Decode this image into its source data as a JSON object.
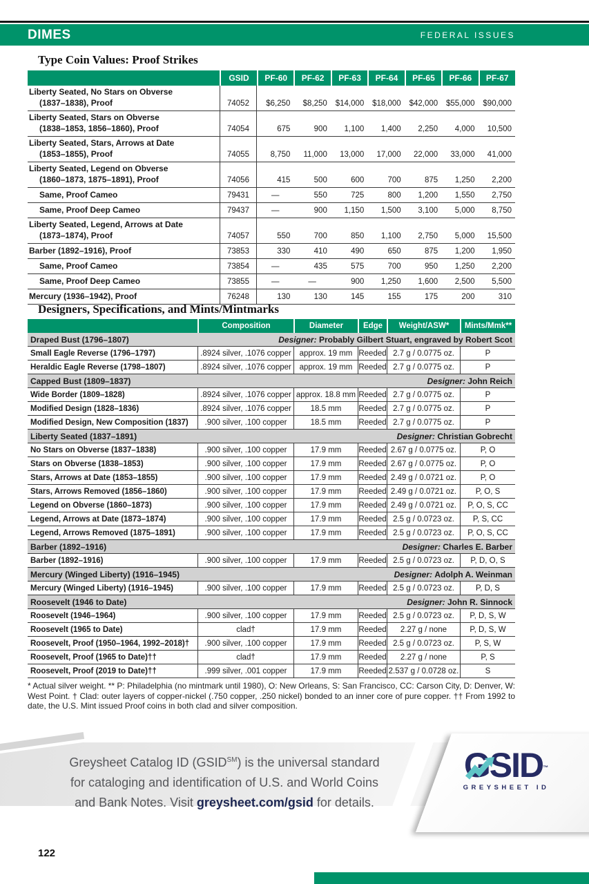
{
  "header": {
    "title": "DIMES",
    "right_label": "FEDERAL ISSUES"
  },
  "proof_table": {
    "title": "Type Coin Values: Proof Strikes",
    "col_headers": [
      "",
      "GSID",
      "PF-60",
      "PF-62",
      "PF-63",
      "PF-64",
      "PF-65",
      "PF-66",
      "PF-67"
    ],
    "rows": [
      {
        "name": "Liberty Seated, No Stars on Obverse",
        "name_line2": "(1837–1838), Proof",
        "gsid": "74052",
        "values": [
          "$6,250",
          "$8,250",
          "$14,000",
          "$18,000",
          "$42,000",
          "$55,000",
          "$90,000"
        ]
      },
      {
        "name": "Liberty Seated, Stars on Obverse",
        "name_line2": "(1838–1853, 1856–1860), Proof",
        "gsid": "74054",
        "values": [
          "675",
          "900",
          "1,100",
          "1,400",
          "2,250",
          "4,000",
          "10,500"
        ]
      },
      {
        "name": "Liberty Seated, Stars, Arrows at Date",
        "name_line2": "(1853–1855), Proof",
        "gsid": "74055",
        "values": [
          "8,750",
          "11,000",
          "13,000",
          "17,000",
          "22,000",
          "33,000",
          "41,000"
        ]
      },
      {
        "name": "Liberty Seated, Legend on Obverse",
        "name_line2": "(1860–1873, 1875–1891), Proof",
        "gsid": "74056",
        "values": [
          "415",
          "500",
          "600",
          "700",
          "875",
          "1,250",
          "2,200"
        ]
      },
      {
        "name": "Same, Proof Cameo",
        "indent": true,
        "gsid": "79431",
        "values": [
          "—",
          "550",
          "725",
          "800",
          "1,200",
          "1,550",
          "2,750"
        ]
      },
      {
        "name": "Same, Proof Deep Cameo",
        "indent": true,
        "gsid": "79437",
        "values": [
          "—",
          "900",
          "1,150",
          "1,500",
          "3,100",
          "5,000",
          "8,750"
        ]
      },
      {
        "name": "Liberty Seated, Legend, Arrows at Date",
        "name_line2": "(1873–1874), Proof",
        "gsid": "74057",
        "values": [
          "550",
          "700",
          "850",
          "1,100",
          "2,750",
          "5,000",
          "15,500"
        ]
      },
      {
        "name": "Barber (1892–1916), Proof",
        "gsid": "73853",
        "values": [
          "330",
          "410",
          "490",
          "650",
          "875",
          "1,200",
          "1,950"
        ]
      },
      {
        "name": "Same, Proof Cameo",
        "indent": true,
        "gsid": "73854",
        "values": [
          "—",
          "435",
          "575",
          "700",
          "950",
          "1,250",
          "2,200"
        ]
      },
      {
        "name": "Same, Proof Deep Cameo",
        "indent": true,
        "gsid": "73855",
        "values": [
          "—",
          "—",
          "900",
          "1,250",
          "1,600",
          "2,500",
          "5,500"
        ]
      },
      {
        "name": "Mercury (1936–1942), Proof",
        "gsid": "76248",
        "values": [
          "130",
          "130",
          "145",
          "155",
          "175",
          "200",
          "310"
        ]
      }
    ]
  },
  "specs_table": {
    "title": "Designers, Specifications, and Mints/Mintmarks",
    "col_headers": [
      "",
      "Composition",
      "Diameter",
      "Edge",
      "Weight/ASW*",
      "Mints/Mmk**"
    ],
    "rows": [
      {
        "type": "section",
        "name": "Draped Bust (1796–1807)",
        "designer_label": "Designer:",
        "designer": "Probably Gilbert Stuart, engraved by Robert Scot"
      },
      {
        "type": "data",
        "name": "Small Eagle Reverse (1796–1797)",
        "composition": ".8924 silver, .1076 copper",
        "diameter": "approx. 19 mm",
        "edge": "Reeded",
        "weight": "2.7 g / 0.0775 oz.",
        "mints": "P"
      },
      {
        "type": "data",
        "name": "Heraldic Eagle Reverse (1798–1807)",
        "composition": ".8924 silver, .1076 copper",
        "diameter": "approx. 19 mm",
        "edge": "Reeded",
        "weight": "2.7 g / 0.0775 oz.",
        "mints": "P"
      },
      {
        "type": "section",
        "name": "Capped Bust (1809–1837)",
        "designer_label": "Designer:",
        "designer": "John Reich"
      },
      {
        "type": "data",
        "name": "Wide Border (1809–1828)",
        "composition": ".8924 silver, .1076 copper",
        "diameter": "approx. 18.8 mm",
        "edge": "Reeded",
        "weight": "2.7 g / 0.0775 oz.",
        "mints": "P"
      },
      {
        "type": "data",
        "name": "Modified Design (1828–1836)",
        "composition": ".8924 silver, .1076 copper",
        "diameter": "18.5 mm",
        "edge": "Reeded",
        "weight": "2.7 g / 0.0775 oz.",
        "mints": "P"
      },
      {
        "type": "data",
        "name": "Modified Design, New Composition (1837)",
        "composition": ".900 silver, .100 copper",
        "diameter": "18.5 mm",
        "edge": "Reeded",
        "weight": "2.7 g / 0.0775 oz.",
        "mints": "P"
      },
      {
        "type": "section",
        "name": "Liberty Seated (1837–1891)",
        "designer_label": "Designer:",
        "designer": "Christian Gobrecht"
      },
      {
        "type": "data",
        "name": "No Stars on Obverse (1837–1838)",
        "composition": ".900 silver, .100 copper",
        "diameter": "17.9 mm",
        "edge": "Reeded",
        "weight": "2.67 g / 0.0775 oz.",
        "mints": "P, O"
      },
      {
        "type": "data",
        "name": "Stars on Obverse (1838–1853)",
        "composition": ".900 silver, .100 copper",
        "diameter": "17.9 mm",
        "edge": "Reeded",
        "weight": "2.67 g / 0.0775 oz.",
        "mints": "P, O"
      },
      {
        "type": "data",
        "name": "Stars, Arrows at Date (1853–1855)",
        "composition": ".900 silver, .100 copper",
        "diameter": "17.9 mm",
        "edge": "Reeded",
        "weight": "2.49 g / 0.0721 oz.",
        "mints": "P, O"
      },
      {
        "type": "data",
        "name": "Stars, Arrows Removed (1856–1860)",
        "composition": ".900 silver, .100 copper",
        "diameter": "17.9 mm",
        "edge": "Reeded",
        "weight": "2.49 g / 0.0721 oz.",
        "mints": "P, O, S"
      },
      {
        "type": "data",
        "name": "Legend on Obverse (1860–1873)",
        "composition": ".900 silver, .100 copper",
        "diameter": "17.9 mm",
        "edge": "Reeded",
        "weight": "2.49 g / 0.0721 oz.",
        "mints": "P, O, S, CC"
      },
      {
        "type": "data",
        "name": "Legend, Arrows at Date (1873–1874)",
        "composition": ".900 silver, .100 copper",
        "diameter": "17.9 mm",
        "edge": "Reeded",
        "weight": "2.5 g / 0.0723 oz.",
        "mints": "P, S, CC"
      },
      {
        "type": "data",
        "name": "Legend, Arrows Removed (1875–1891)",
        "composition": ".900 silver, .100 copper",
        "diameter": "17.9 mm",
        "edge": "Reeded",
        "weight": "2.5 g / 0.0723 oz.",
        "mints": "P, O, S, CC"
      },
      {
        "type": "section",
        "name": "Barber (1892–1916)",
        "designer_label": "Designer:",
        "designer": "Charles E. Barber"
      },
      {
        "type": "data",
        "name": "Barber (1892–1916)",
        "composition": ".900 silver, .100 copper",
        "diameter": "17.9 mm",
        "edge": "Reeded",
        "weight": "2.5 g / 0.0723 oz.",
        "mints": "P, D, O, S"
      },
      {
        "type": "section",
        "name": "Mercury (Winged Liberty) (1916–1945)",
        "designer_label": "Designer:",
        "designer": "Adolph A. Weinman"
      },
      {
        "type": "data",
        "name": "Mercury (Winged Liberty) (1916–1945)",
        "composition": ".900 silver, .100 copper",
        "diameter": "17.9 mm",
        "edge": "Reeded",
        "weight": "2.5 g / 0.0723 oz.",
        "mints": "P, D, S"
      },
      {
        "type": "section",
        "name": "Roosevelt (1946 to Date)",
        "designer_label": "Designer:",
        "designer": "John R. Sinnock"
      },
      {
        "type": "data",
        "name": "Roosevelt (1946–1964)",
        "composition": ".900 silver, .100 copper",
        "diameter": "17.9 mm",
        "edge": "Reeded",
        "weight": "2.5 g / 0.0723 oz.",
        "mints": "P, D, S, W"
      },
      {
        "type": "data",
        "name": "Roosevelt (1965 to Date)",
        "composition": "clad†",
        "diameter": "17.9 mm",
        "edge": "Reeded",
        "weight": "2.27 g / none",
        "mints": "P, D, S, W"
      },
      {
        "type": "data",
        "name": "Roosevelt, Proof (1950–1964, 1992–2018)†",
        "composition": ".900 silver, .100 copper",
        "diameter": "17.9 mm",
        "edge": "Reeded",
        "weight": "2.5 g / 0.0723 oz.",
        "mints": "P, S, W"
      },
      {
        "type": "data",
        "name": "Roosevelt, Proof (1965 to Date)††",
        "composition": "clad†",
        "diameter": "17.9 mm",
        "edge": "Reeded",
        "weight": "2.27 g / none",
        "mints": "P, S"
      },
      {
        "type": "data",
        "name": "Roosevelt, Proof (2019 to Date)††",
        "composition": ".999 silver, .001 copper",
        "diameter": "17.9 mm",
        "edge": "Reeded",
        "weight": "2.537 g / 0.0728 oz.",
        "mints": "S"
      }
    ]
  },
  "footnote": "* Actual silver weight.  ** P: Philadelphia (no mintmark until 1980), O: New Orleans, S: San Francisco, CC: Carson City, D: Denver, W: West Point.  † Clad: outer layers of copper-nickel (.750 copper, .250 nickel) bonded to an inner core of pure copper.  †† From 1992 to date, the U.S. Mint issued Proof coins in both clad and silver composition.",
  "banner": {
    "line1_prefix": "Greysheet Catalog ID (GSID",
    "line1_sup": "SM",
    "line1_suffix": ") is the universal standard",
    "line2": "for cataloging and identification of U.S. and World Coins",
    "line3_prefix": "and Bank Notes. Visit ",
    "line3_link": "greysheet.com/gsid",
    "line3_suffix": " for details.",
    "logo_text": "GSID",
    "logo_tm": "™",
    "logo_subtext": "GREYSHEET ID"
  },
  "page_number": "122",
  "colors": {
    "green": "#00936a",
    "navy": "#262b63",
    "teal": "#5fc4c6",
    "section_gray": "#d2d2d2"
  }
}
